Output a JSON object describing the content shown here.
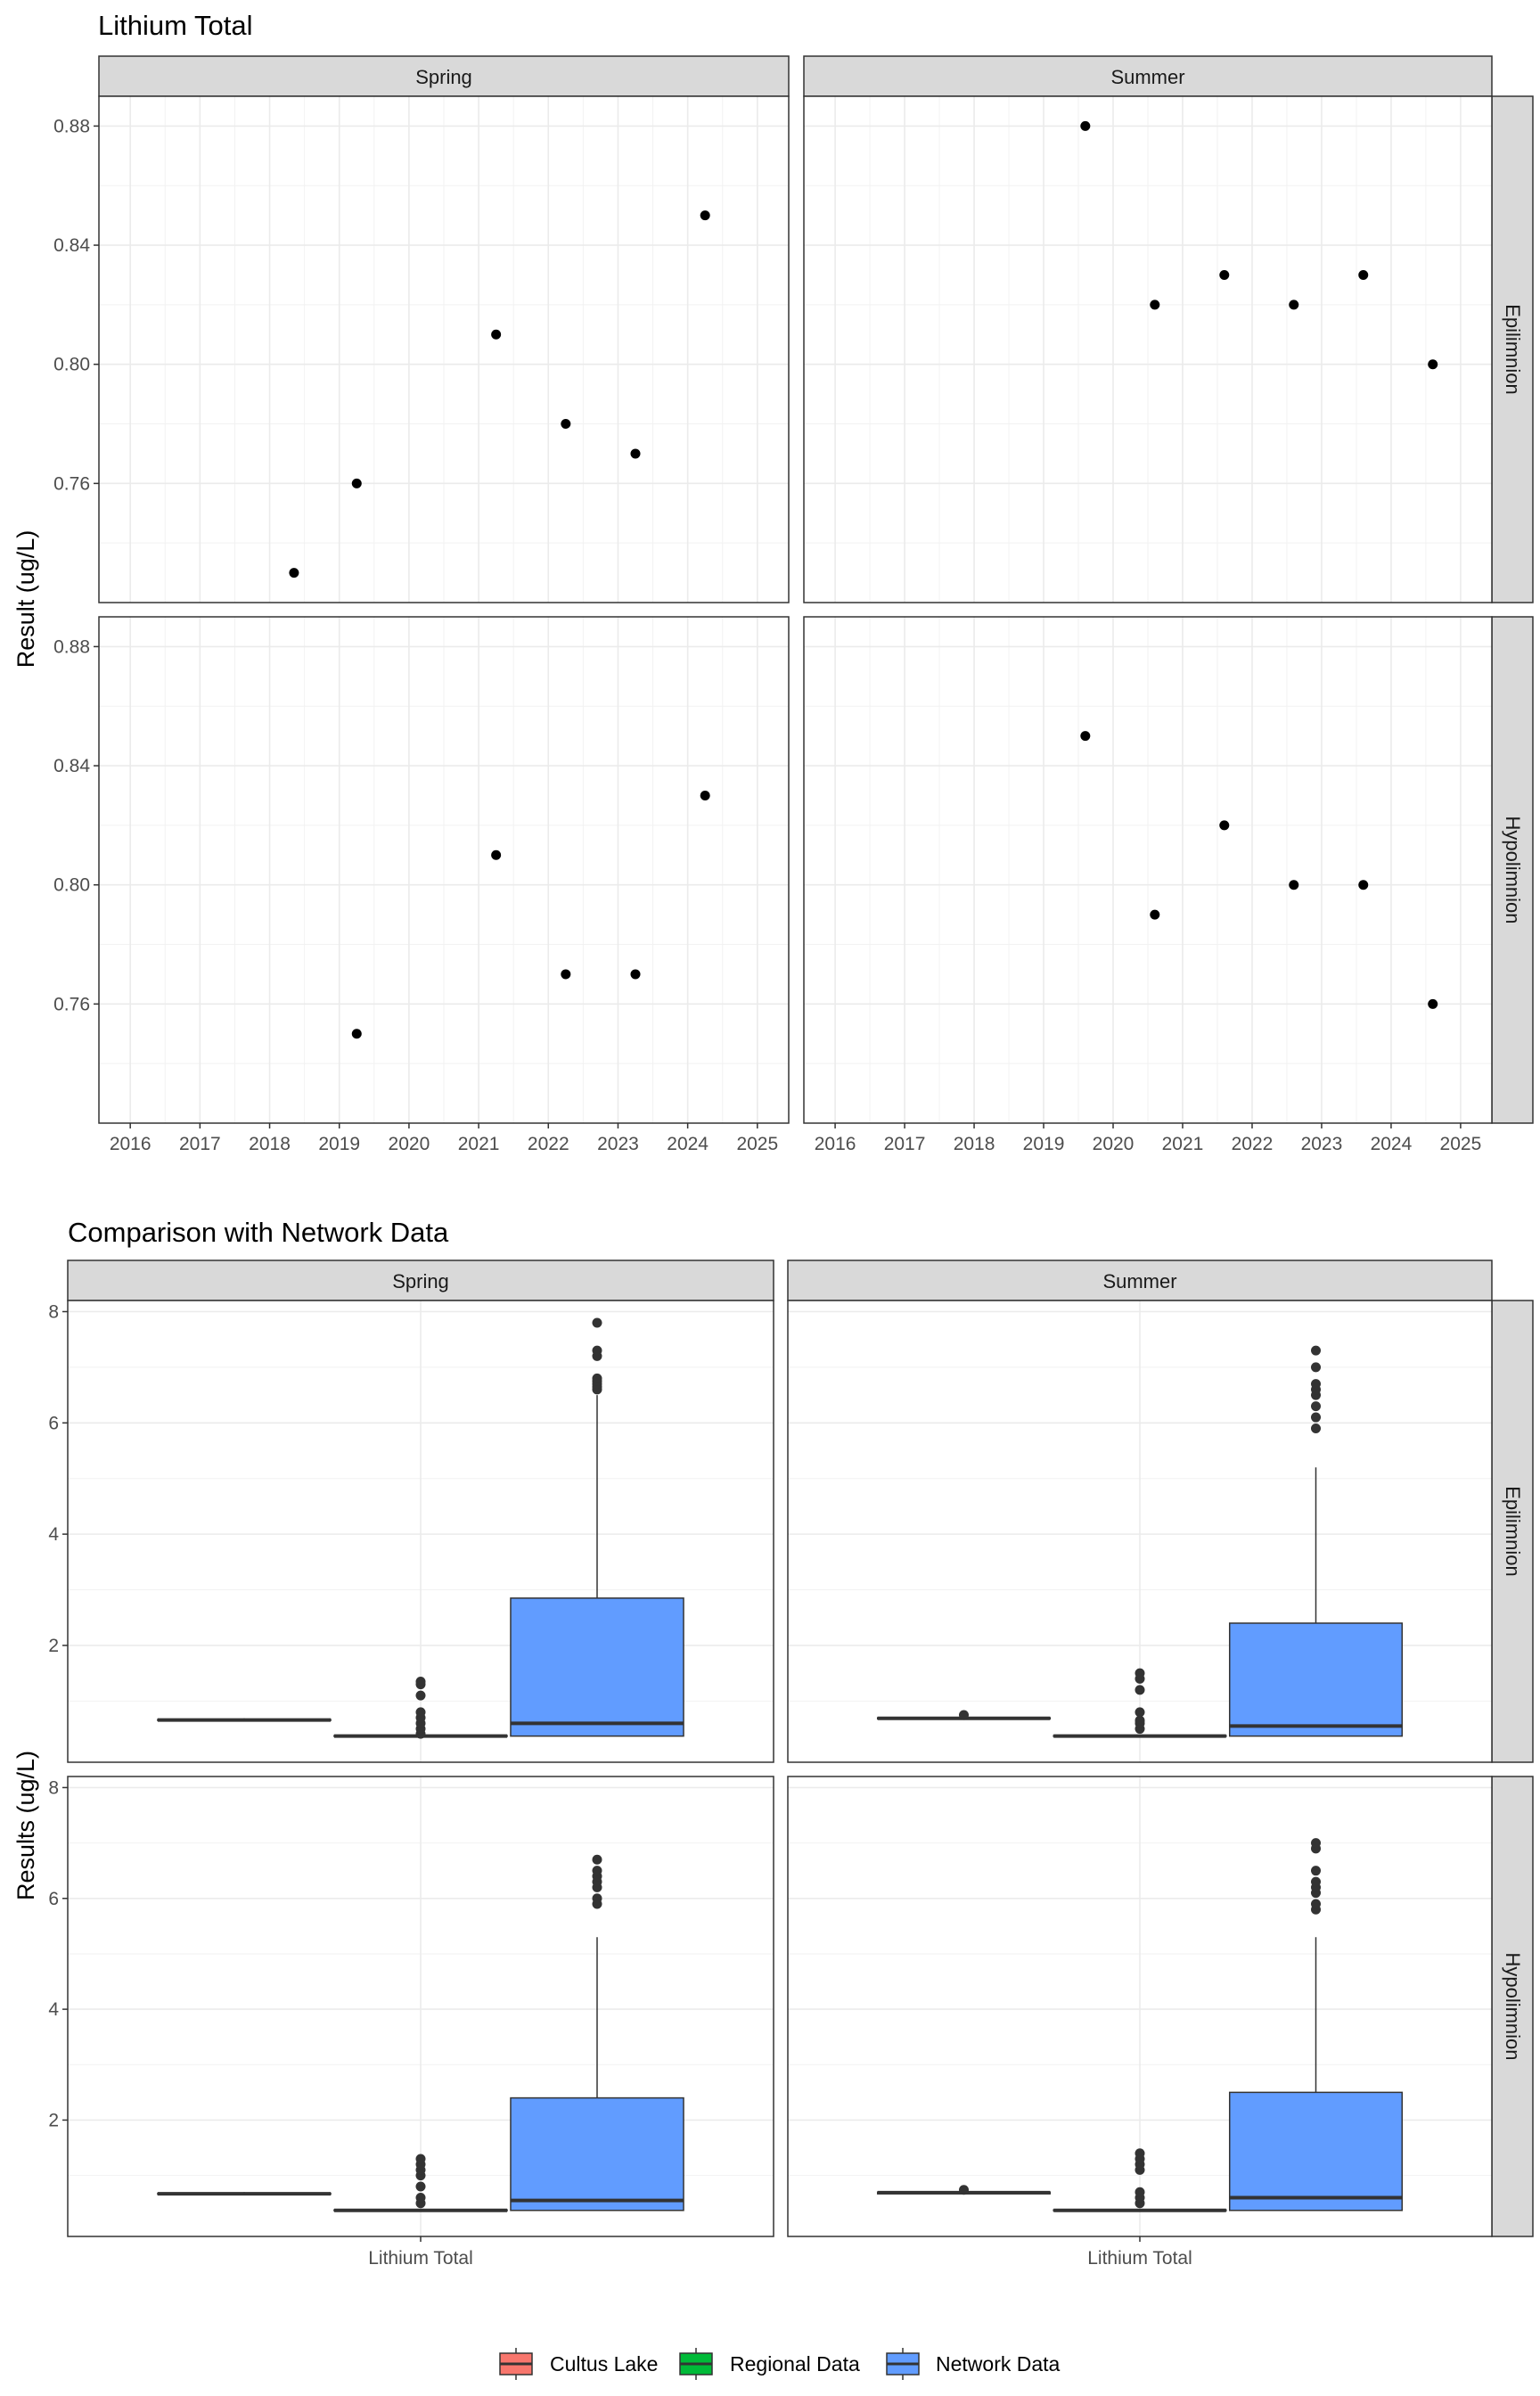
{
  "chart_data": [
    {
      "type": "scatter",
      "title": "Lithium Total",
      "ylabel": "Result (ug/L)",
      "xlabel": "",
      "ylim": [
        0.72,
        0.89
      ],
      "xlim": [
        2015.55,
        2025.45
      ],
      "yticks": [
        0.76,
        0.8,
        0.84,
        0.88
      ],
      "xticks": [
        2016,
        2017,
        2018,
        2019,
        2020,
        2021,
        2022,
        2023,
        2024,
        2025
      ],
      "grid": true,
      "columns": [
        "Spring",
        "Summer"
      ],
      "rows": [
        "Epilimnion",
        "Hypolimnion"
      ],
      "panels": [
        {
          "season": "Spring",
          "depth": "Epilimnion",
          "x": [
            2018.35,
            2019.25,
            2021.25,
            2022.25,
            2023.25,
            2024.25
          ],
          "y": [
            0.73,
            0.76,
            0.81,
            0.78,
            0.77,
            0.85
          ]
        },
        {
          "season": "Summer",
          "depth": "Epilimnion",
          "x": [
            2019.6,
            2020.6,
            2021.6,
            2022.6,
            2023.6,
            2024.6
          ],
          "y": [
            0.88,
            0.82,
            0.83,
            0.82,
            0.83,
            0.8
          ]
        },
        {
          "season": "Spring",
          "depth": "Hypolimnion",
          "x": [
            2019.25,
            2021.25,
            2022.25,
            2023.25,
            2024.25
          ],
          "y": [
            0.75,
            0.81,
            0.77,
            0.77,
            0.83
          ]
        },
        {
          "season": "Summer",
          "depth": "Hypolimnion",
          "x": [
            2019.6,
            2020.6,
            2021.6,
            2022.6,
            2023.6,
            2024.6
          ],
          "y": [
            0.85,
            0.79,
            0.82,
            0.8,
            0.8,
            0.76
          ]
        }
      ]
    },
    {
      "type": "box",
      "title": "Comparison with Network Data",
      "ylabel": "Results (ug/L)",
      "xlabel": "",
      "categories": [
        "Lithium Total"
      ],
      "ylim": [
        -0.1,
        8.2
      ],
      "yticks": [
        2,
        4,
        6,
        8
      ],
      "grid": true,
      "columns": [
        "Spring",
        "Summer"
      ],
      "rows": [
        "Epilimnion",
        "Hypolimnion"
      ],
      "legend": {
        "position": "bottom",
        "entries": [
          {
            "name": "Cultus Lake",
            "color": "#F8766D"
          },
          {
            "name": "Regional Data",
            "color": "#00BA38"
          },
          {
            "name": "Network Data",
            "color": "#619CFF"
          }
        ]
      },
      "panels": [
        {
          "season": "Spring",
          "depth": "Epilimnion",
          "groups": [
            {
              "name": "Cultus Lake",
              "min": 0.65,
              "q1": 0.65,
              "median": 0.66,
              "q3": 0.67,
              "max": 0.69,
              "outliers": []
            },
            {
              "name": "Regional Data",
              "min": 0.37,
              "q1": 0.37,
              "median": 0.37,
              "q3": 0.38,
              "max": 0.39,
              "outliers": [
                0.41,
                0.5,
                0.6,
                0.7,
                0.8,
                1.1,
                1.3,
                1.35
              ]
            },
            {
              "name": "Network Data",
              "min": 0.37,
              "q1": 0.37,
              "median": 0.6,
              "q3": 2.85,
              "max": 6.5,
              "outliers": [
                6.6,
                6.65,
                6.7,
                6.75,
                6.8,
                7.2,
                7.3,
                7.8
              ]
            }
          ]
        },
        {
          "season": "Summer",
          "depth": "Epilimnion",
          "groups": [
            {
              "name": "Cultus Lake",
              "min": 0.66,
              "q1": 0.68,
              "median": 0.69,
              "q3": 0.7,
              "max": 0.72,
              "outliers": [
                0.75
              ]
            },
            {
              "name": "Regional Data",
              "min": 0.37,
              "q1": 0.37,
              "median": 0.37,
              "q3": 0.38,
              "max": 0.39,
              "outliers": [
                0.5,
                0.6,
                0.65,
                0.8,
                1.2,
                1.4,
                1.5
              ]
            },
            {
              "name": "Network Data",
              "min": 0.37,
              "q1": 0.37,
              "median": 0.55,
              "q3": 2.4,
              "max": 5.2,
              "outliers": [
                5.9,
                6.1,
                6.3,
                6.5,
                6.6,
                6.7,
                7.0,
                7.3
              ]
            }
          ]
        },
        {
          "season": "Spring",
          "depth": "Hypolimnion",
          "groups": [
            {
              "name": "Cultus Lake",
              "min": 0.66,
              "q1": 0.66,
              "median": 0.67,
              "q3": 0.68,
              "max": 0.7,
              "outliers": []
            },
            {
              "name": "Regional Data",
              "min": 0.37,
              "q1": 0.37,
              "median": 0.37,
              "q3": 0.38,
              "max": 0.39,
              "outliers": [
                0.5,
                0.6,
                0.8,
                1.0,
                1.1,
                1.2,
                1.3
              ]
            },
            {
              "name": "Network Data",
              "min": 0.37,
              "q1": 0.37,
              "median": 0.55,
              "q3": 2.4,
              "max": 5.3,
              "outliers": [
                5.9,
                6.0,
                6.2,
                6.3,
                6.4,
                6.5,
                6.7
              ]
            }
          ]
        },
        {
          "season": "Summer",
          "depth": "Hypolimnion",
          "groups": [
            {
              "name": "Cultus Lake",
              "min": 0.66,
              "q1": 0.67,
              "median": 0.69,
              "q3": 0.7,
              "max": 0.72,
              "outliers": [
                0.74
              ]
            },
            {
              "name": "Regional Data",
              "min": 0.37,
              "q1": 0.37,
              "median": 0.37,
              "q3": 0.38,
              "max": 0.39,
              "outliers": [
                0.5,
                0.6,
                0.7,
                1.1,
                1.2,
                1.3,
                1.4
              ]
            },
            {
              "name": "Network Data",
              "min": 0.37,
              "q1": 0.37,
              "median": 0.6,
              "q3": 2.5,
              "max": 5.3,
              "outliers": [
                5.8,
                5.9,
                6.1,
                6.2,
                6.3,
                6.5,
                6.9,
                7.0
              ]
            }
          ]
        }
      ]
    }
  ]
}
